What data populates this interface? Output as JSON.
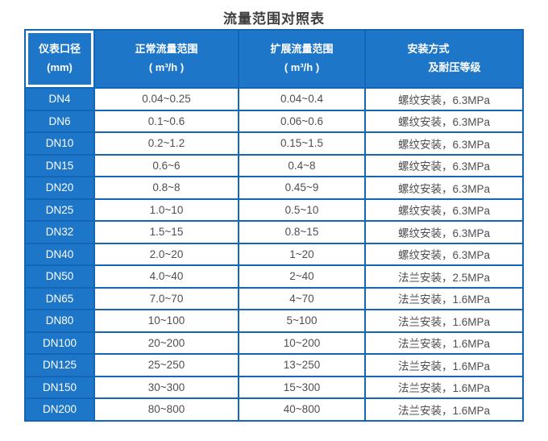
{
  "title": "流量范围对照表",
  "colors": {
    "cell_blue": "#1e76c8",
    "border_blue": "#1565b6",
    "header_text": "#ffffff",
    "data_text": "#4f4f4f",
    "title_text": "#3d3d3d"
  },
  "table": {
    "headers": [
      {
        "line1": "仪表口径",
        "line2": "(mm)"
      },
      {
        "line1": "正常流量范围",
        "line2": "( m³/h )"
      },
      {
        "line1": "扩展流量范围",
        "line2": "( m³/h )"
      },
      {
        "line1": "安装方式",
        "line2": "及耐压等级"
      }
    ],
    "rows": [
      {
        "dn": "DN4",
        "normal": "0.04~0.25",
        "extended": "0.04~0.4",
        "install": "螺纹安装，6.3MPa"
      },
      {
        "dn": "DN6",
        "normal": "0.1~0.6",
        "extended": "0.06~0.6",
        "install": "螺纹安装，6.3MPa"
      },
      {
        "dn": "DN10",
        "normal": "0.2~1.2",
        "extended": "0.15~1.5",
        "install": "螺纹安装，6.3MPa"
      },
      {
        "dn": "DN15",
        "normal": "0.6~6",
        "extended": "0.4~8",
        "install": "螺纹安装，6.3MPa"
      },
      {
        "dn": "DN20",
        "normal": "0.8~8",
        "extended": "0.45~9",
        "install": "螺纹安装，6.3MPa"
      },
      {
        "dn": "DN25",
        "normal": "1.0~10",
        "extended": "0.5~10",
        "install": "螺纹安装，6.3MPa"
      },
      {
        "dn": "DN32",
        "normal": "1.5~15",
        "extended": "0.8~15",
        "install": "螺纹安装，6.3MPa"
      },
      {
        "dn": "DN40",
        "normal": "2.0~20",
        "extended": "1~20",
        "install": "螺纹安装，6.3MPa"
      },
      {
        "dn": "DN50",
        "normal": "4.0~40",
        "extended": "2~40",
        "install": "法兰安装，2.5MPa"
      },
      {
        "dn": "DN65",
        "normal": "7.0~70",
        "extended": "4~70",
        "install": "法兰安装，1.6MPa"
      },
      {
        "dn": "DN80",
        "normal": "10~100",
        "extended": "5~100",
        "install": "法兰安装，1.6MPa"
      },
      {
        "dn": "DN100",
        "normal": "20~200",
        "extended": "10~200",
        "install": "法兰安装，1.6MPa"
      },
      {
        "dn": "DN125",
        "normal": "25~250",
        "extended": "13~250",
        "install": "法兰安装，1.6MPa"
      },
      {
        "dn": "DN150",
        "normal": "30~300",
        "extended": "15~300",
        "install": "法兰安装，1.6MPa"
      },
      {
        "dn": "DN200",
        "normal": "80~800",
        "extended": "40~800",
        "install": "法兰安装，1.6MPa"
      }
    ]
  },
  "chart_data": {
    "type": "table",
    "title": "流量范围对照表",
    "columns": [
      "仪表口径(mm)",
      "正常流量范围( m³/h )",
      "扩展流量范围( m³/h )",
      "安装方式及耐压等级"
    ],
    "rows": [
      [
        "DN4",
        "0.04~0.25",
        "0.04~0.4",
        "螺纹安装，6.3MPa"
      ],
      [
        "DN6",
        "0.1~0.6",
        "0.06~0.6",
        "螺纹安装，6.3MPa"
      ],
      [
        "DN10",
        "0.2~1.2",
        "0.15~1.5",
        "螺纹安装，6.3MPa"
      ],
      [
        "DN15",
        "0.6~6",
        "0.4~8",
        "螺纹安装，6.3MPa"
      ],
      [
        "DN20",
        "0.8~8",
        "0.45~9",
        "螺纹安装，6.3MPa"
      ],
      [
        "DN25",
        "1.0~10",
        "0.5~10",
        "螺纹安装，6.3MPa"
      ],
      [
        "DN32",
        "1.5~15",
        "0.8~15",
        "螺纹安装，6.3MPa"
      ],
      [
        "DN40",
        "2.0~20",
        "1~20",
        "螺纹安装，6.3MPa"
      ],
      [
        "DN50",
        "4.0~40",
        "2~40",
        "法兰安装，2.5MPa"
      ],
      [
        "DN65",
        "7.0~70",
        "4~70",
        "法兰安装，1.6MPa"
      ],
      [
        "DN80",
        "10~100",
        "5~100",
        "法兰安装，1.6MPa"
      ],
      [
        "DN100",
        "20~200",
        "10~200",
        "法兰安装，1.6MPa"
      ],
      [
        "DN125",
        "25~250",
        "13~250",
        "法兰安装，1.6MPa"
      ],
      [
        "DN150",
        "30~300",
        "15~300",
        "法兰安装，1.6MPa"
      ],
      [
        "DN200",
        "80~800",
        "40~800",
        "法兰安装，1.6MPa"
      ]
    ]
  }
}
